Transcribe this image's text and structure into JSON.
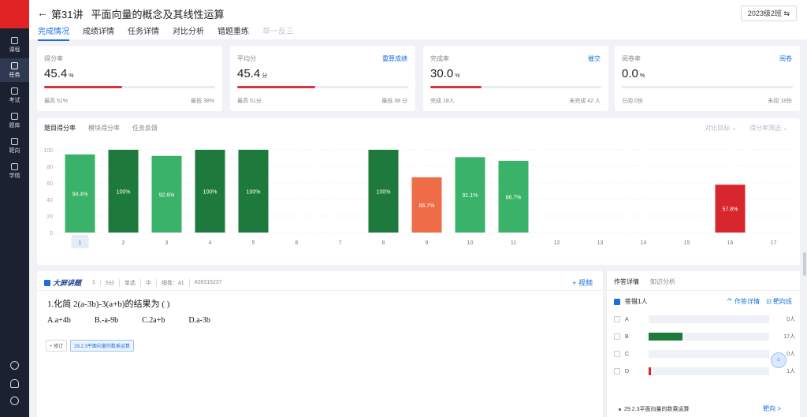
{
  "sidebar": {
    "items": [
      {
        "label": "课程",
        "icon": "book-icon"
      },
      {
        "label": "任务",
        "icon": "task-icon",
        "active": true
      },
      {
        "label": "考试",
        "icon": "exam-icon"
      },
      {
        "label": "题库",
        "icon": "cube-icon"
      },
      {
        "label": "靶向",
        "icon": "target-icon"
      },
      {
        "label": "学情",
        "icon": "chart-icon"
      }
    ]
  },
  "header": {
    "lesson_num": "第31讲",
    "title": "平面向量的概念及其线性运算",
    "class_select": "2023级2班 ⇆",
    "tabs": [
      "完成情况",
      "成绩详情",
      "任务详情",
      "对比分析",
      "错题重练",
      "举一反三"
    ]
  },
  "cards": [
    {
      "label": "得分率",
      "value": "45.4",
      "unit": "%",
      "link": "",
      "progress": 0.454,
      "foot_left": "最高 51%",
      "foot_right": "最低 38%"
    },
    {
      "label": "平均分",
      "value": "45.4",
      "unit": "分",
      "link": "重算成绩",
      "progress": 0.454,
      "foot_left": "最高 51分",
      "foot_right": "最低 38 分"
    },
    {
      "label": "完成率",
      "value": "30.0",
      "unit": "%",
      "link": "催交",
      "progress": 0.3,
      "foot_left": "完成 18人",
      "foot_right": "未完成 42 人"
    },
    {
      "label": "阅卷率",
      "value": "0.0",
      "unit": "%",
      "link": "阅卷",
      "progress": 0.0,
      "foot_left": "已阅 0份",
      "foot_right": "未阅 18份"
    }
  ],
  "chart_panel": {
    "tabs": [
      "题目得分率",
      "模块得分率",
      "任务反馈"
    ],
    "filters": [
      "对比目标  ⌄",
      "得分率筛选  ⌄"
    ]
  },
  "chart_data": {
    "type": "bar",
    "categories": [
      "1",
      "2",
      "3",
      "4",
      "5",
      "6",
      "7",
      "8",
      "9",
      "10",
      "11",
      "12",
      "13",
      "14",
      "15",
      "16",
      "17"
    ],
    "values": [
      94.4,
      100,
      92.6,
      100,
      100,
      null,
      null,
      100,
      66.7,
      91.1,
      86.7,
      null,
      null,
      null,
      null,
      57.8,
      null
    ],
    "labels": [
      "94.4%",
      "100%",
      "92.6%",
      "100%",
      "100%",
      "",
      "",
      "100%",
      "66.7%",
      "91.1%",
      "86.7%",
      "",
      "",
      "",
      "",
      "57.8%",
      ""
    ],
    "colors": [
      "#3bb26a",
      "#1e7a3c",
      "#3bb26a",
      "#1e7a3c",
      "#1e7a3c",
      "",
      "",
      "#1e7a3c",
      "#ef6c48",
      "#3bb26a",
      "#3bb26a",
      "",
      "",
      "",
      "",
      "#d8262e",
      ""
    ],
    "yticks": [
      0,
      20,
      40,
      60,
      80,
      100
    ],
    "ylim": [
      0,
      100
    ],
    "selected_category": "1",
    "grid": true
  },
  "question": {
    "brand": "大屏讲题",
    "meta": [
      "1",
      "5分",
      "单选",
      "中",
      "细卷：41",
      "#26315237"
    ],
    "video_label": "+ 视频",
    "text": "1.化简 2(a-3b)-3(a+b)的结果为 (    )",
    "options": [
      "A.a+4b",
      "B.-a-9b",
      "C.2a+b",
      "D.a-3b"
    ],
    "tags": [
      "+ 修订",
      "29.2.3平面向量的数乘运算"
    ]
  },
  "answer": {
    "tabs": [
      "作答详情",
      "知识分析"
    ],
    "filter_label": "答错1人",
    "actions": [
      "⺈ 作答详情",
      "⊡ 靶向班"
    ],
    "options": [
      {
        "letter": "A",
        "count": "0人",
        "fraction": 0.0,
        "color": "#1e7a3c"
      },
      {
        "letter": "B",
        "count": "17人",
        "fraction": 0.28,
        "color": "#1e7a3c"
      },
      {
        "letter": "C",
        "count": "0人",
        "fraction": 0.0,
        "color": "#1e7a3c"
      },
      {
        "letter": "D",
        "count": "1人",
        "fraction": 0.02,
        "color": "#d8262e"
      }
    ],
    "knowledge": "29.2.3平面向量的数乘运算",
    "target_link": "靶向 >"
  }
}
